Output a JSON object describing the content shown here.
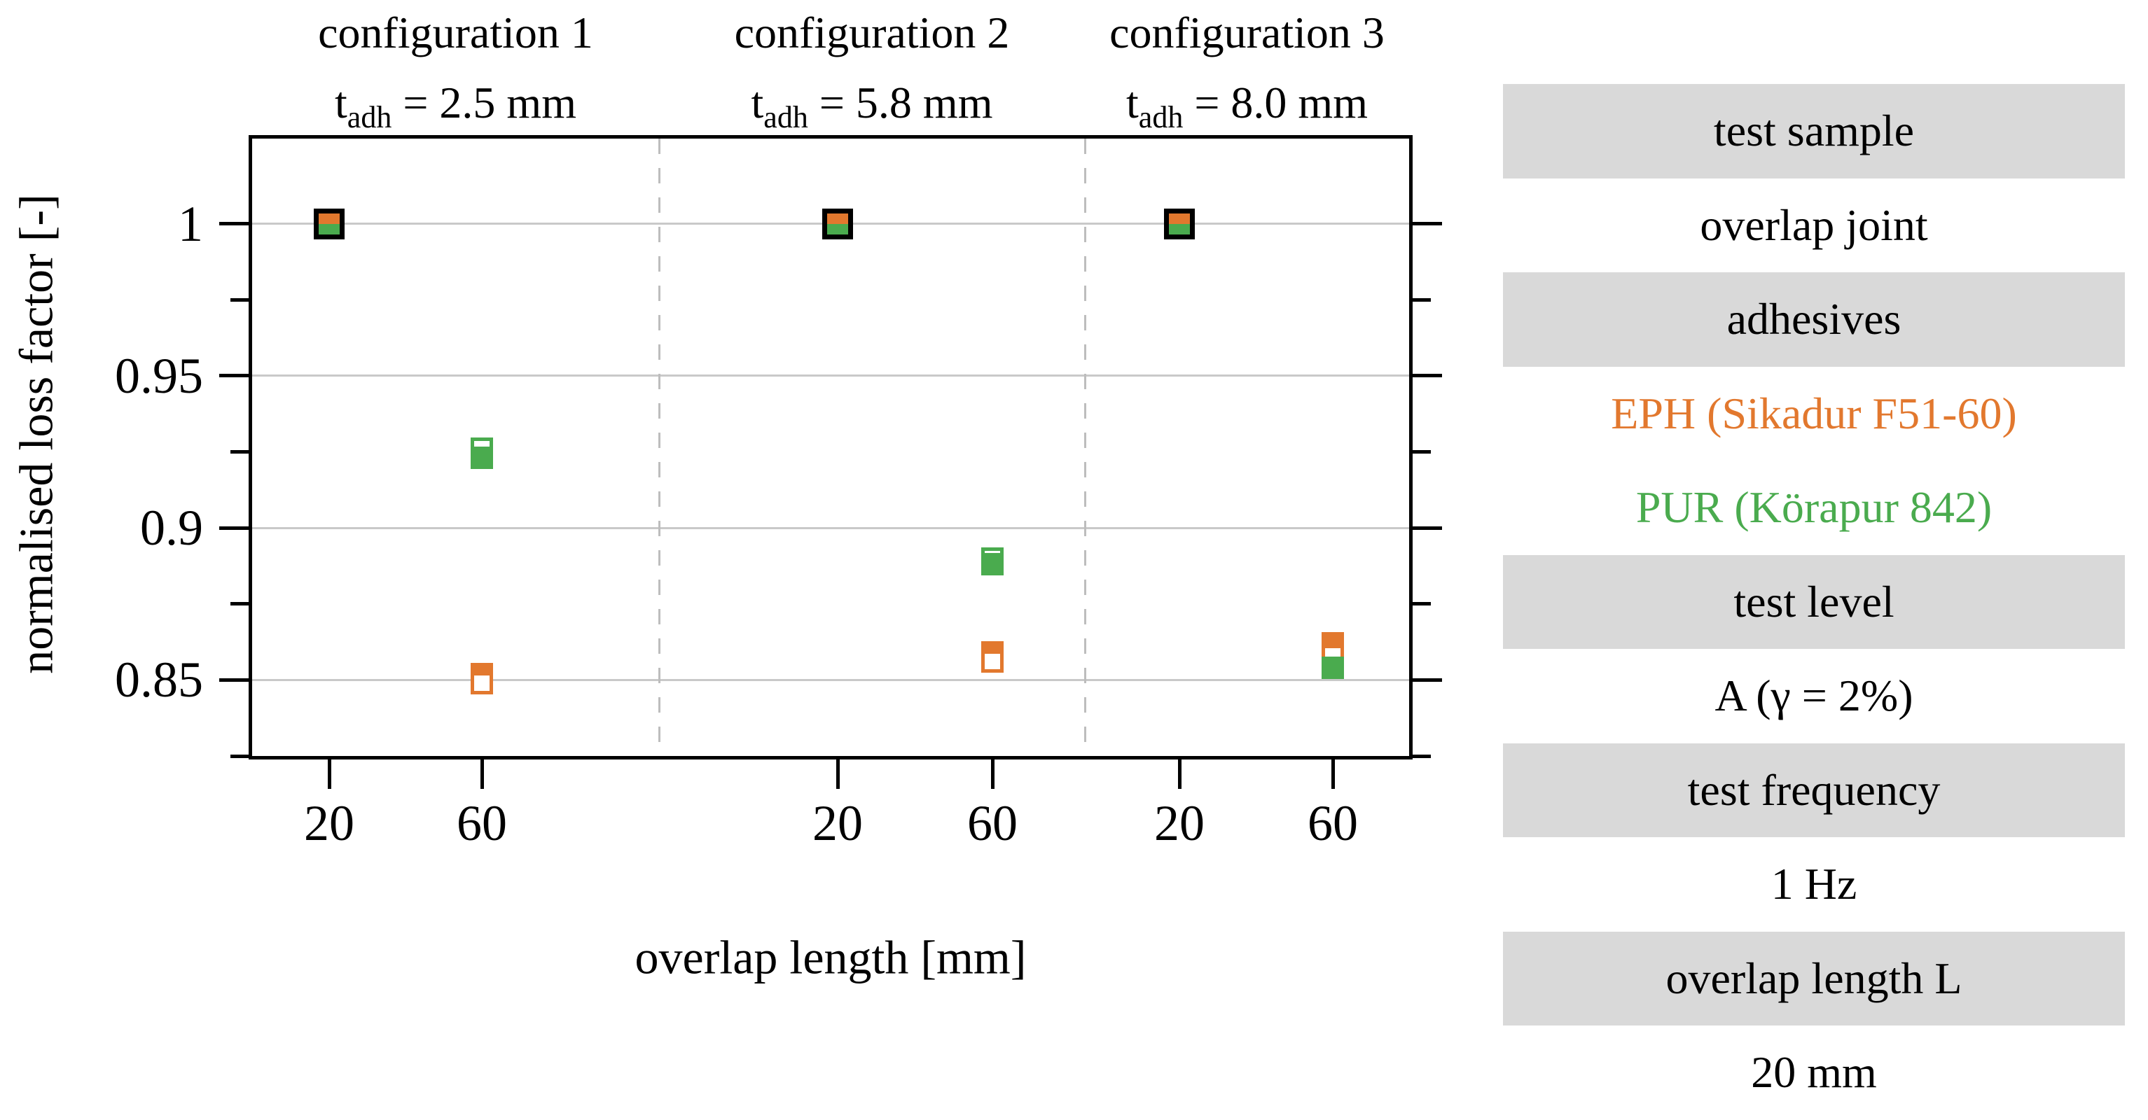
{
  "chart_data": {
    "type": "scatter",
    "title": "",
    "xlabel": "overlap length [mm]",
    "ylabel": "normalised loss factor [-]",
    "ylim": [
      0.825,
      1.028
    ],
    "grid": true,
    "y_major_ticks": [
      1,
      0.95,
      0.9,
      0.85
    ],
    "y_major_tick_labels": [
      "1",
      "0.95",
      "0.9",
      "0.85"
    ],
    "y_minor_ticks": [
      0.975,
      0.925,
      0.875,
      0.825
    ],
    "x_categories": [
      20,
      60
    ],
    "series": [
      {
        "name": "EPH (Sikadur F51-60)",
        "color": "#E2782E"
      },
      {
        "name": "PUR (Körapur 842)",
        "color": "#4AAB4E"
      }
    ],
    "panels": [
      {
        "config": "configuration 1",
        "t_symbol": "t",
        "t_subscript": "adh",
        "t_adh_mm": 2.5,
        "x_tick_labels": [
          "20",
          "60"
        ],
        "points": [
          {
            "x": 20,
            "markers": [
              {
                "series": "EPH+PUR",
                "style": "reference",
                "value": 1.0
              }
            ]
          },
          {
            "x": 60,
            "markers": [
              {
                "series": "PUR",
                "style": "open",
                "value": 0.926
              },
              {
                "series": "PUR",
                "style": "filled",
                "value": 0.923
              },
              {
                "series": "EPH",
                "style": "filled",
                "value": 0.852
              },
              {
                "series": "EPH",
                "style": "open",
                "value": 0.849
              }
            ]
          }
        ]
      },
      {
        "config": "configuration 2",
        "t_symbol": "t",
        "t_subscript": "adh",
        "t_adh_mm": 5.8,
        "x_tick_labels": [
          "20",
          "60"
        ],
        "points": [
          {
            "x": 20,
            "markers": [
              {
                "series": "EPH+PUR",
                "style": "reference",
                "value": 1.0
              }
            ]
          },
          {
            "x": 60,
            "markers": [
              {
                "series": "PUR",
                "style": "open",
                "value": 0.89
              },
              {
                "series": "PUR",
                "style": "filled",
                "value": 0.888
              },
              {
                "series": "EPH",
                "style": "filled",
                "value": 0.859
              },
              {
                "series": "EPH",
                "style": "open",
                "value": 0.856
              }
            ]
          }
        ]
      },
      {
        "config": "configuration 3",
        "t_symbol": "t",
        "t_subscript": "adh",
        "t_adh_mm": 8.0,
        "x_tick_labels": [
          "20",
          "60"
        ],
        "points": [
          {
            "x": 20,
            "markers": [
              {
                "series": "EPH+PUR",
                "style": "reference",
                "value": 1.0
              }
            ]
          },
          {
            "x": 60,
            "markers": [
              {
                "series": "EPH",
                "style": "filled",
                "value": 0.862
              },
              {
                "series": "EPH",
                "style": "open",
                "value": 0.858
              },
              {
                "series": "PUR",
                "style": "filled",
                "value": 0.854
              }
            ]
          }
        ]
      }
    ]
  },
  "legend_table": {
    "rows": [
      {
        "label": "test sample",
        "shaded": true,
        "color": "#000000"
      },
      {
        "label": "overlap joint",
        "shaded": false,
        "color": "#000000"
      },
      {
        "label": "adhesives",
        "shaded": true,
        "color": "#000000"
      },
      {
        "label": "EPH (Sikadur F51-60)",
        "shaded": false,
        "color": "#E2782E"
      },
      {
        "label": "PUR (Körapur 842)",
        "shaded": false,
        "color": "#4AAB4E"
      },
      {
        "label": "test level",
        "shaded": true,
        "color": "#000000"
      },
      {
        "label": "A (γ = 2%)",
        "shaded": false,
        "color": "#000000"
      },
      {
        "label": "test frequency",
        "shaded": true,
        "color": "#000000"
      },
      {
        "label": "1 Hz",
        "shaded": false,
        "color": "#000000"
      },
      {
        "label": "overlap length L",
        "shaded": true,
        "color": "#000000"
      },
      {
        "label": "20 mm",
        "shaded": false,
        "color": "#000000"
      }
    ],
    "shade_color": "#D9D9D9"
  },
  "colors": {
    "eph_orange": "#E2782E",
    "pur_green": "#4AAB4E",
    "grid_gray": "#C9C9C9",
    "separator_gray": "#BDBDBD",
    "axis_black": "#000000",
    "table_gray": "#D9D9D9"
  }
}
